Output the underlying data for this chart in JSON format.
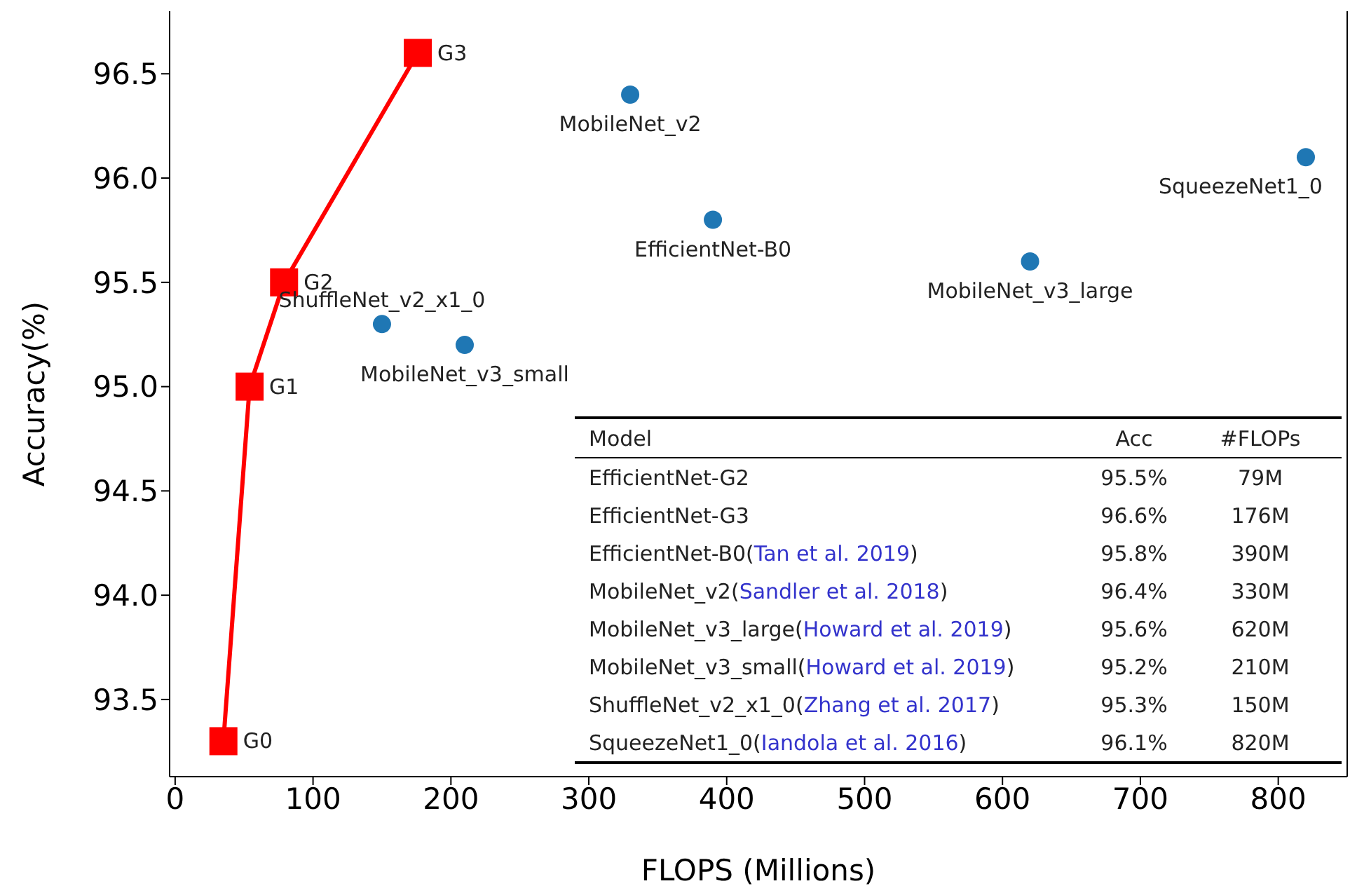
{
  "chart_data": {
    "type": "scatter",
    "xlabel": "FLOPS (Millions)",
    "ylabel": "Accuracy(%)",
    "xlim": [
      -4,
      850
    ],
    "xticks": [
      0,
      100,
      200,
      300,
      400,
      500,
      600,
      700,
      800
    ],
    "ylim": [
      93.13,
      96.8
    ],
    "yticks": [
      93.5,
      {
        "value": 94,
        "label": "94.0"
      },
      94.5,
      {
        "value": 95,
        "label": "95.0"
      },
      95.5,
      {
        "value": 96,
        "label": "96.0"
      },
      96.5
    ],
    "grid": false,
    "legend": false,
    "series": [
      {
        "type": "line",
        "color": "#ff0000",
        "marker": "square",
        "x": [
          35,
          54,
          79,
          176
        ],
        "values": [
          93.3,
          95.0,
          95.5,
          96.6
        ]
      },
      {
        "type": "scatter",
        "color": "#1f77b4",
        "marker": "circle",
        "x": [
          150,
          210,
          330,
          390,
          620,
          820
        ],
        "values": [
          95.3,
          95.2,
          96.4,
          95.8,
          95.6,
          96.1
        ]
      }
    ],
    "annotations": [
      {
        "text": "G0",
        "x": 35,
        "y": 93.3
      },
      {
        "text": "G1",
        "x": 54,
        "y": 95.0
      },
      {
        "text": "G2",
        "x": 79,
        "y": 95.5
      },
      {
        "text": "G3",
        "x": 176,
        "y": 96.6
      },
      {
        "text": "ShuffleNet_v2_x1_0",
        "x": 150,
        "y": 95.3
      },
      {
        "text": "MobileNet_v3_small",
        "x": 210,
        "y": 95.2
      },
      {
        "text": "MobileNet_v2",
        "x": 330,
        "y": 96.4
      },
      {
        "text": "EfficientNet-B0",
        "x": 390,
        "y": 95.8
      },
      {
        "text": "MobileNet_v3_large",
        "x": 620,
        "y": 95.6
      },
      {
        "text": "SqueezeNet1_0",
        "x": 820,
        "y": 96.1
      },
      "Model",
      "Acc",
      "#FLOPs",
      "EfficientNet-G2",
      "95.5%",
      "79M",
      "EfficientNet-G3",
      "96.6%",
      "176M",
      "EfficientNet-B0(Tan et al. 2019)",
      "95.8%",
      "390M",
      "MobileNet_v2(Sandler et al. 2018)",
      "96.4%",
      "330M",
      "MobileNet_v3_large(Howard et al. 2019)",
      "95.6%",
      "620M",
      "MobileNet_v3_small(Howard et al. 2019)",
      "95.2%",
      "210M",
      "ShuffleNet_v2_x1_0(Zhang et al. 2017)",
      "95.3%",
      "150M",
      "SqueezeNet1_0(Iandola et al. 2016)",
      "96.1%",
      "820M"
    ]
  }
}
